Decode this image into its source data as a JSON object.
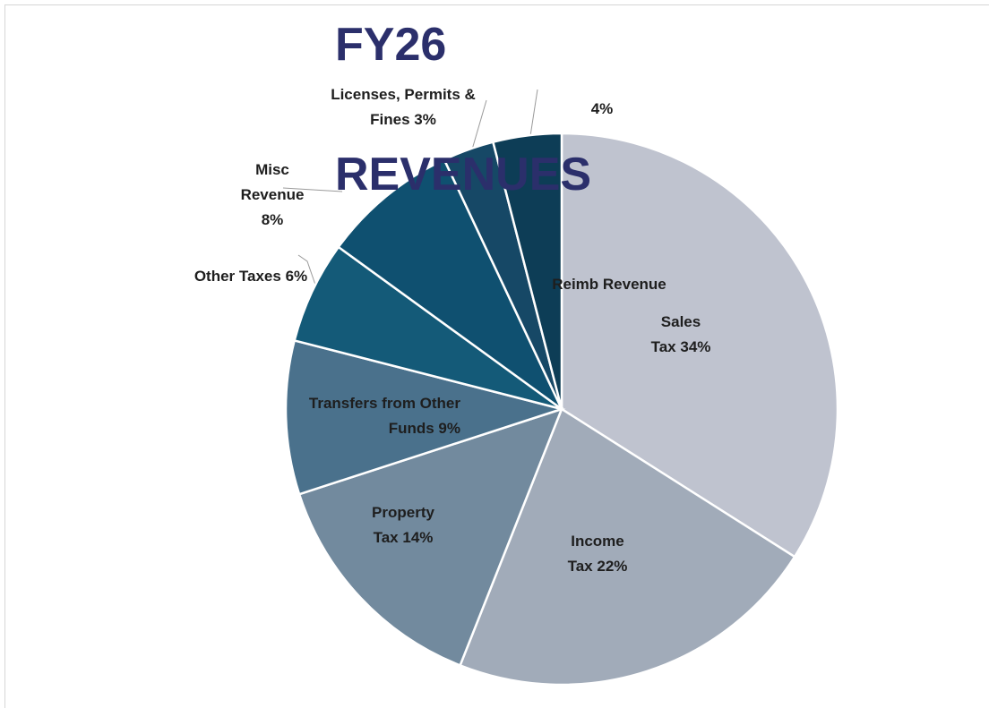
{
  "chart_data": {
    "type": "pie",
    "title": "FY26 REVENUES",
    "categories": [
      "Sales Tax",
      "Income Tax",
      "Property Tax",
      "Transfers from Other Funds",
      "Other Taxes",
      "Misc Revenue",
      "Licenses, Permits & Fines",
      "Reimb Revenue"
    ],
    "values": [
      34,
      22,
      14,
      9,
      6,
      8,
      3,
      4
    ],
    "value_labels": [
      "34%",
      "22%",
      "14%",
      "9%",
      "6%",
      "8%",
      "3%",
      "4%"
    ],
    "colors": [
      "#bfc3cf",
      "#a1abb9",
      "#728a9e",
      "#4a718c",
      "#145a78",
      "#0f5070",
      "#164866",
      "#0d3d56"
    ]
  }
}
